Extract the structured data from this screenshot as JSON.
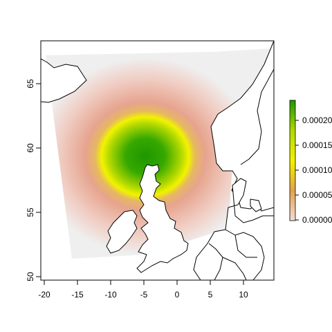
{
  "map": {
    "x_ticks": [
      "-20",
      "-15",
      "-10",
      "-5",
      "0",
      "5",
      "10"
    ],
    "y_ticks": [
      "50",
      "55",
      "60",
      "65"
    ],
    "x_range": [
      -20.5,
      14.5
    ],
    "y_range": [
      49.7,
      68.3
    ],
    "density_center": {
      "lon": -6.5,
      "lat": 58.5
    },
    "grid_extent": {
      "lon": [
        -17,
        12
      ],
      "lat": [
        51.2,
        67.4
      ]
    }
  },
  "legend": {
    "labels": [
      "0.00020",
      "0.00015",
      "0.00010",
      "0.00005",
      "0.00000"
    ],
    "colors": [
      "#1e9600",
      "#b0d800",
      "#f2f200",
      "#e0a24c",
      "#f2dcd8"
    ]
  },
  "colors": {
    "outside": "#efefef",
    "land_fill": "#ffffff",
    "coast": "#000000"
  }
}
